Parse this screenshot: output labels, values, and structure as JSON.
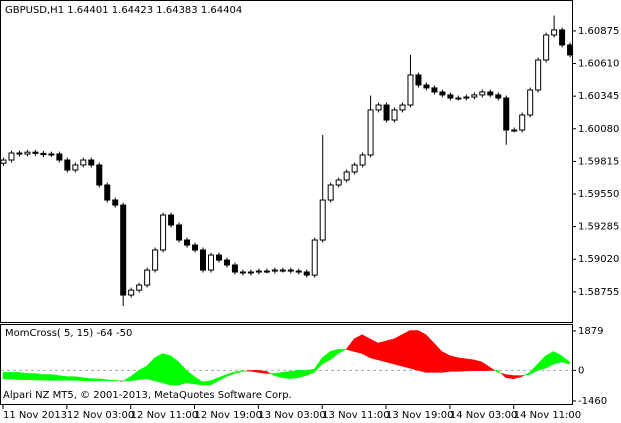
{
  "chart_data": [
    {
      "type": "candlestick",
      "title": "GBPUSD,H1  1.64401 1.64423 1.64383 1.64404",
      "categories": [
        "11 Nov 2013",
        null,
        null,
        null,
        null,
        null,
        null,
        null,
        "12 Nov 03:00",
        null,
        null,
        null,
        null,
        null,
        null,
        null,
        "12 Nov 11:00",
        null,
        null,
        null,
        null,
        null,
        null,
        null,
        "12 Nov 19:00",
        null,
        null,
        null,
        null,
        null,
        null,
        null,
        "13 Nov 03:00",
        null,
        null,
        null,
        null,
        null,
        null,
        null,
        "13 Nov 11:00",
        null,
        null,
        null,
        null,
        null,
        null,
        null,
        "13 Nov 19:00",
        null,
        null,
        null,
        null,
        null,
        null,
        null,
        "14 Nov 03:00",
        null,
        null,
        null,
        null,
        null,
        null,
        null,
        "14 Nov 11:00",
        null,
        null,
        null,
        null,
        null,
        null,
        null
      ],
      "open": [
        1.598,
        1.59826,
        1.59883,
        1.59875,
        1.5989,
        1.5988,
        1.5987,
        1.59875,
        1.59826,
        1.59745,
        1.59786,
        1.59826,
        1.59786,
        1.59623,
        1.59501,
        1.5946,
        1.58729,
        1.58769,
        1.5881,
        1.58932,
        1.59095,
        1.59379,
        1.59298,
        1.59176,
        1.59135,
        1.59095,
        1.58932,
        1.59054,
        1.59013,
        1.58973,
        1.58916,
        1.58908,
        1.58916,
        1.58924,
        1.58924,
        1.58932,
        1.58932,
        1.58924,
        1.58916,
        1.58891,
        1.59176,
        1.59501,
        1.59623,
        1.59664,
        1.59729,
        1.59786,
        1.59867,
        1.60233,
        1.60273,
        1.60151,
        1.60233,
        1.60273,
        1.60517,
        1.60436,
        1.60412,
        1.60379,
        1.60355,
        1.6033,
        1.6033,
        1.60338,
        1.60355,
        1.60379,
        1.60355,
        1.6033,
        1.6007,
        1.6007,
        1.60192,
        1.60395,
        1.60639,
        1.60842,
        1.60883,
        1.60761
      ],
      "high": [
        1.59846,
        1.59903,
        1.59903,
        1.5991,
        1.5991,
        1.599,
        1.59895,
        1.59895,
        1.59846,
        1.59806,
        1.59846,
        1.59846,
        1.59806,
        1.59643,
        1.59521,
        1.5948,
        1.58789,
        1.5883,
        1.58952,
        1.59115,
        1.59399,
        1.59399,
        1.59318,
        1.59196,
        1.59155,
        1.59115,
        1.59074,
        1.59074,
        1.59033,
        1.58993,
        1.58936,
        1.58936,
        1.58944,
        1.58944,
        1.58952,
        1.58952,
        1.58952,
        1.58944,
        1.58936,
        1.59196,
        1.6003,
        1.59643,
        1.59684,
        1.59749,
        1.59806,
        1.59887,
        1.6035,
        1.60293,
        1.60293,
        1.60253,
        1.60293,
        1.6068,
        1.60537,
        1.60456,
        1.60432,
        1.60399,
        1.60375,
        1.6035,
        1.60358,
        1.60375,
        1.60399,
        1.60399,
        1.60375,
        1.6035,
        1.6009,
        1.60212,
        1.60415,
        1.60659,
        1.60862,
        1.61,
        1.60903,
        1.60781
      ],
      "low": [
        1.5978,
        1.59806,
        1.59855,
        1.59855,
        1.5986,
        1.5985,
        1.5985,
        1.59806,
        1.59725,
        1.59725,
        1.59766,
        1.59766,
        1.59603,
        1.59481,
        1.5944,
        1.5864,
        1.58709,
        1.58749,
        1.5879,
        1.58912,
        1.59075,
        1.59278,
        1.59156,
        1.59115,
        1.59075,
        1.58912,
        1.58912,
        1.58993,
        1.58953,
        1.58896,
        1.58888,
        1.58888,
        1.58896,
        1.58904,
        1.58904,
        1.58912,
        1.58904,
        1.58896,
        1.58871,
        1.58871,
        1.59156,
        1.59481,
        1.59603,
        1.59644,
        1.59709,
        1.59766,
        1.59847,
        1.60213,
        1.60131,
        1.60131,
        1.60213,
        1.60253,
        1.60416,
        1.60392,
        1.60359,
        1.60335,
        1.6031,
        1.6031,
        1.6031,
        1.60318,
        1.60335,
        1.60335,
        1.6031,
        1.5995,
        1.6005,
        1.6005,
        1.60172,
        1.60375,
        1.60619,
        1.60822,
        1.60741,
        1.6066
      ],
      "close": [
        1.59826,
        1.59883,
        1.59875,
        1.5989,
        1.5988,
        1.5987,
        1.59875,
        1.59826,
        1.59745,
        1.59786,
        1.59826,
        1.59786,
        1.59623,
        1.59501,
        1.5946,
        1.58729,
        1.58769,
        1.5881,
        1.58932,
        1.59095,
        1.59379,
        1.59298,
        1.59176,
        1.59135,
        1.59095,
        1.58932,
        1.59054,
        1.59013,
        1.58973,
        1.58916,
        1.58908,
        1.58916,
        1.58924,
        1.58924,
        1.58932,
        1.58932,
        1.58924,
        1.58916,
        1.58891,
        1.59176,
        1.59501,
        1.59623,
        1.59664,
        1.59729,
        1.59786,
        1.59867,
        1.60233,
        1.60273,
        1.60151,
        1.60233,
        1.60273,
        1.60517,
        1.60436,
        1.60412,
        1.60379,
        1.60355,
        1.6033,
        1.6033,
        1.60338,
        1.60355,
        1.60379,
        1.60355,
        1.6033,
        1.6007,
        1.6007,
        1.60192,
        1.60395,
        1.60639,
        1.60842,
        1.60883,
        1.60761,
        1.6068
      ],
      "up_color": "#ffffff",
      "down_color": "#000000",
      "ylim": [
        1.5851,
        1.6111
      ],
      "yticks": [
        1.60875,
        {
          "value": 1.6061,
          "label": "1.60610"
        },
        1.60345,
        {
          "value": 1.6008,
          "label": "1.60080"
        },
        1.59815,
        {
          "value": 1.5955,
          "label": "1.59550"
        },
        1.59285,
        {
          "value": 1.5902,
          "label": "1.59020"
        },
        1.58755
      ]
    },
    {
      "type": "band",
      "title": "MomCross( 5, 15) -64 -50",
      "copyright": "Alpari NZ MT5, © 2001-2013, MetaQuotes Software Corp.",
      "above_color": "#00ff00",
      "below_color": "#ff0000",
      "series": [
        {
          "values": [
            -100,
            -100,
            -100,
            -150,
            -150,
            -200,
            -200,
            -250,
            -300,
            -300,
            -350,
            -400,
            -400,
            -450,
            -480,
            -520,
            -300,
            0,
            200,
            600,
            800,
            700,
            400,
            0,
            -300,
            -550,
            -500,
            -350,
            -200,
            -80,
            -30,
            -40,
            -100,
            -150,
            -150,
            -100,
            -50,
            0,
            0,
            50,
            600,
            900,
            1000,
            1000,
            900,
            800,
            600,
            500,
            400,
            300,
            200,
            100,
            0,
            -100,
            -100,
            -100,
            -50,
            -50,
            -30,
            -20,
            -20,
            -10,
            0,
            -350,
            -400,
            -300,
            -100,
            300,
            700,
            900,
            700,
            400
          ]
        },
        {
          "values": [
            -400,
            -420,
            -440,
            -450,
            -460,
            -470,
            -480,
            -480,
            -480,
            -480,
            -490,
            -500,
            -500,
            -500,
            -500,
            -510,
            -500,
            -450,
            -400,
            -500,
            -600,
            -700,
            -700,
            -600,
            -650,
            -700,
            -700,
            -500,
            -300,
            -150,
            -60,
            0,
            0,
            -50,
            -250,
            -350,
            -400,
            -350,
            -250,
            -100,
            300,
            500,
            800,
            1000,
            1500,
            1700,
            1500,
            1300,
            1400,
            1500,
            1700,
            1900,
            1900,
            1700,
            1300,
            900,
            700,
            600,
            550,
            500,
            400,
            150,
            -100,
            -200,
            -250,
            -250,
            -200,
            0,
            100,
            300,
            400,
            300
          ]
        }
      ],
      "ylim": [
        -1606,
        2161
      ],
      "yticks": [
        1879,
        0,
        -1460
      ]
    }
  ]
}
